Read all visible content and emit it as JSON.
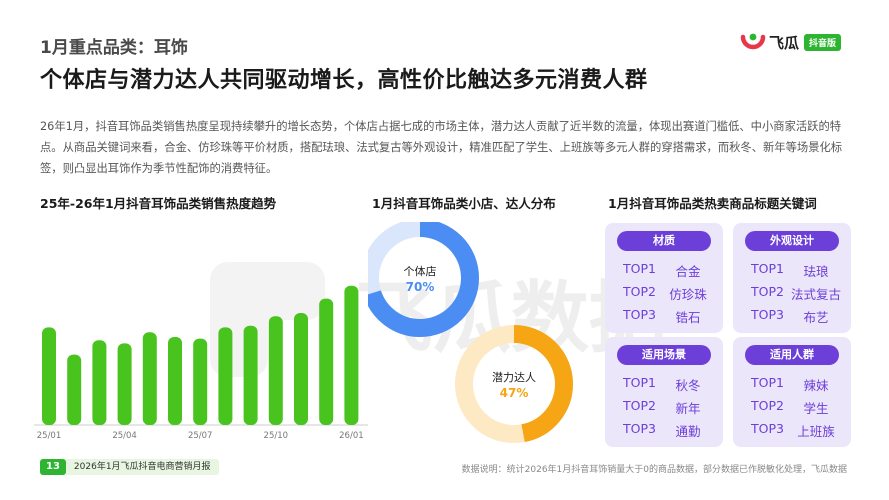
{
  "header": {
    "category_title": "1月重点品类：耳饰",
    "headline": "个体店与潜力达人共同驱动增长，高性价比触达多元消费人群",
    "intro": "26年1月，抖音耳饰品类销售热度呈现持续攀升的增长态势，个体店占据七成的市场主体，潜力达人贡献了近半数的流量，体现出赛道门槛低、中小商家活跃的特点。从商品关键词来看，合金、仿珍珠等平价材质，搭配珐琅、法式复古等外观设计，精准匹配了学生、上班族等多元人群的穿搭需求，而秋冬、新年等场景化标签，则凸显出耳饰作为季节性配饰的消费特征。"
  },
  "logo": {
    "name": "飞瓜",
    "badge": "抖音版"
  },
  "watermark": {
    "text": "飞瓜数据"
  },
  "colors": {
    "green": "#49c41e",
    "blue": "#4b8df3",
    "orange": "#f6a515",
    "purple": "#6c3fd8",
    "panel": "#ece6fa"
  },
  "sections": {
    "trend_title": "25年-26年1月抖音耳饰品类销售热度趋势",
    "dist_title": "1月抖音耳饰品类小店、达人分布",
    "keyword_title": "1月抖音耳饰品类热卖商品标题关键词"
  },
  "chart_data": [
    {
      "type": "bar",
      "categories": [
        "25/01",
        "25/02",
        "25/03",
        "25/04",
        "25/05",
        "25/06",
        "25/07",
        "25/08",
        "25/09",
        "25/10",
        "25/11",
        "25/12",
        "26/01"
      ],
      "tick_labels": [
        "25/01",
        "25/04",
        "25/07",
        "25/10",
        "26/01"
      ],
      "values": [
        61,
        44,
        53,
        51,
        58,
        55,
        54,
        61,
        62,
        68,
        70,
        79,
        87
      ],
      "ylim": [
        0,
        100
      ],
      "color": "#49c41e",
      "grid": false
    },
    {
      "type": "pie",
      "donuts": [
        {
          "label": "个体店",
          "value": 70,
          "value_text": "70%",
          "color": "#4b8df3",
          "track": "#d9e6fc"
        },
        {
          "label": "潜力达人",
          "value": 47,
          "value_text": "47%",
          "color": "#f6a515",
          "track": "#fde9c4"
        }
      ]
    }
  ],
  "keywords": [
    {
      "title": "材质",
      "items": [
        {
          "rank": "TOP1",
          "word": "合金"
        },
        {
          "rank": "TOP2",
          "word": "仿珍珠"
        },
        {
          "rank": "TOP3",
          "word": "锆石"
        }
      ]
    },
    {
      "title": "外观设计",
      "items": [
        {
          "rank": "TOP1",
          "word": "珐琅"
        },
        {
          "rank": "TOP2",
          "word": "法式复古"
        },
        {
          "rank": "TOP3",
          "word": "布艺"
        }
      ]
    },
    {
      "title": "适用场景",
      "items": [
        {
          "rank": "TOP1",
          "word": "秋冬"
        },
        {
          "rank": "TOP2",
          "word": "新年"
        },
        {
          "rank": "TOP3",
          "word": "通勤"
        }
      ]
    },
    {
      "title": "适用人群",
      "items": [
        {
          "rank": "TOP1",
          "word": "辣妹"
        },
        {
          "rank": "TOP2",
          "word": "学生"
        },
        {
          "rank": "TOP3",
          "word": "上班族"
        }
      ]
    }
  ],
  "footer": {
    "page_number": "13",
    "report_name": "2026年1月飞瓜抖音电商营销月报",
    "source_note": "数据说明：统计2026年1月抖音耳饰销量大于0的商品数据，部分数据已作脱敏化处理，飞瓜数据"
  }
}
